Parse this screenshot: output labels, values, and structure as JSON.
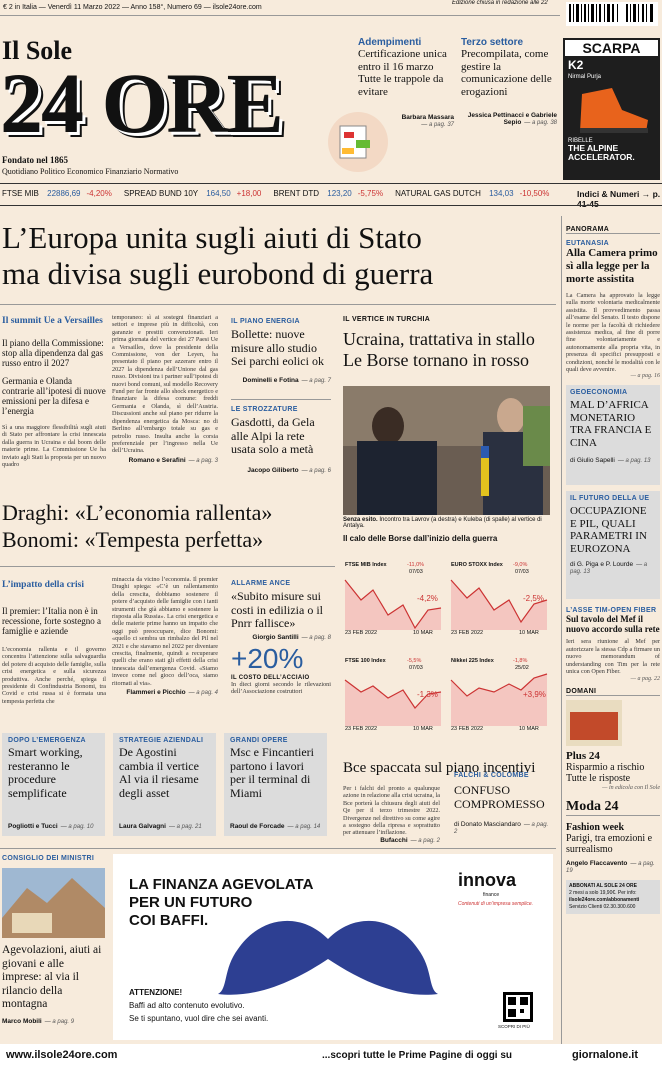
{
  "topbar": {
    "info": "€ 2 in Italia — Venerdì 11 Marzo 2022 — Anno 158°, Numero 69 — ilsole24ore.com",
    "edition": "Edizione chiusa in redazione alle 22"
  },
  "masthead": {
    "name_top": "Il Sole",
    "name_main": "24 ORE",
    "founded": "Fondato nel 1865",
    "tagline": "Quotidiano Politico Economico Finanziario Normativo"
  },
  "teasers": [
    {
      "kicker": "Adempimenti",
      "text": "Certificazione unica entro il 16 marzo Tutte le trappole da evitare",
      "byline": "Barbara Massara",
      "page": "— a pag. 37"
    },
    {
      "kicker": "Terzo settore",
      "text": "Precompilata, come gestire la comunicazione delle erogazioni",
      "byline": "Jessica Pettinacci e Gabriele Sepio",
      "page": "— a pag. 38"
    }
  ],
  "top_ad": {
    "brand": "SCARPA",
    "model": "K2",
    "athlete": "Nirmal Purja",
    "slogan": "RIBELLE",
    "claim": "THE ALPINE ACCELERATOR."
  },
  "markets": {
    "items": [
      {
        "label": "FTSE MIB",
        "value": "22886,69",
        "change": "-4,20%"
      },
      {
        "label": "SPREAD BUND 10Y",
        "value": "164,50",
        "change": "+18,00"
      },
      {
        "label": "BRENT DTD",
        "value": "123,20",
        "change": "-5,75%"
      },
      {
        "label": "NATURAL GAS DUTCH",
        "value": "134,03",
        "change": "-10,50%"
      }
    ],
    "link": "Indici & Numeri → p. 41-45"
  },
  "headline": [
    "L’Europa unita sugli aiuti di Stato",
    "ma divisa sugli eurobond di guerra"
  ],
  "summit": {
    "kicker": "Il summit Ue a Versailles",
    "items": [
      "Il piano della Commissione: stop alla dipendenza dal gas russo entro il 2027",
      "Germania e Olanda contrarie all’ipotesi di nuove emissioni per la difesa e l’energia"
    ],
    "body": "Sì a una maggiore flessibilità sugli aiuti di Stato per affrontare la crisi innescata dalla guerra in Ucraina e dal boom delle materie prime. La Commissione Ue ha inviato agli Stati la proposta per un nuovo quadro"
  },
  "summit_cont": {
    "body": "temporaneo: sì ai sostegni finanziari a settori e imprese più in difficoltà, con garanzie e prestiti convenzionati. Ieri prima giornata del vertice dei 27 Paesi Ue a Versailles, dove la presidente della Commissione, von der Leyen, ha presentato il piano per azzerare entro il 2027 la dipendenza dell’Unione dal gas russo. Divisioni tra i partner sull’ipotesi di nuovi bond comuni, sul modello Recovery Fund per far fronte allo shock energetico e finanziare la difesa comune: freddi Germania e Olanda, sì dell’Austria. Discussioni anche sul piano per ridurre la dipendenza energetica da Mosca: no di Berlino all’embargo totale su gas e petrolio russo. Insulta anche la corsia preferenziale per l’ingresso nella Ue dell’Ucraina.",
    "byline": "Romano e Serafini",
    "page": "— a pag. 3"
  },
  "energy": {
    "kicker": "IL PIANO ENERGIA",
    "title": "Bollette: nuove misure allo studio Sei parchi eolici ok",
    "byline": "Dominelli e Fotina",
    "page": "— a pag. 7"
  },
  "bottlenecks": {
    "kicker": "LE STROZZATURE",
    "title": "Gasdotti, da Gela alle Alpi la rete usata solo a metà",
    "byline": "Jacopo Giliberto",
    "page": "— a pag. 6"
  },
  "lead": {
    "kicker": "IL VERTICE IN TURCHIA",
    "title": "Ucraina, trattativa in stallo Le Borse tornano in rosso",
    "caption_bold": "Senza esito.",
    "caption": "Incontro tra Lavrov (a destra) e Kuleba (di spalle) al vertice di Antalya."
  },
  "draghi": [
    "Draghi: «L’economia rallenta»",
    "Bonomi: «Tempesta perfetta»"
  ],
  "crisis": {
    "kicker": "L’impatto della crisi",
    "item": "Il premier: l’Italia non è in recessione, forte sostegno a famiglie e aziende",
    "body": "L’economia rallenta e il governo concentra l’attenzione sulla salvaguardia del potere di acquisto delle famiglie, sulla crisi energetica e sulla sicurezza produttiva. Anche perché, spiega il presidente di Confindustria Bonomi, tra Covid e crisi russa si è formata una tempesta perfetta che"
  },
  "crisis_cont": {
    "body": "minaccia da vicino l’economia. Il premier Draghi spiega: «C’è un rallentamento della crescita, dobbiamo sostenere il potere d’acquisto delle famiglie con i tanti strumenti che già abbiamo e sostenere la risposta alla Russia». La crisi energetica e delle materie prime hanno un impatto che oggi può preoccupare, dice Bonomi: «quello ci sembra un rimbalzo del Pil nel 2021 e che stavamo nel 2022 per diventare crescita, finalmente, quindi a recuperare quelli che erano stati gli effetti della crisi innescata dall’emergenza Covid. «Siamo invece come nel gioco dell’oca, siamo ritornati al via».",
    "byline": "Flammeri e Picchio",
    "page": "— a pag. 4"
  },
  "ance": {
    "kicker": "ALLARME ANCE",
    "title": "«Subito misure sui costi in edilizia o il Pnrr fallisce»",
    "byline": "Giorgio Santilli",
    "page": "— a pag. 8",
    "stat": "+20%",
    "stat_kicker": "IL COSTO DELL’ACCIAIO",
    "stat_text": "In dieci giorni secondo le rilevazioni dell’Associazione costruttori"
  },
  "stock_charts": {
    "title": "Il calo delle Borse dall’inizio della guerra",
    "panels": [
      {
        "name": "FTSE MIB Index",
        "low": "-11,0%",
        "low_date": "07/03",
        "last": "-4,2%",
        "start": "23 FEB 2022",
        "end": "10 MAR"
      },
      {
        "name": "EURO STOXX Index",
        "low": "-9,0%",
        "low_date": "07/03",
        "last": "-2,5%",
        "start": "23 FEB 2022",
        "end": "10 MAR"
      },
      {
        "name": "FTSE 100 Index",
        "low": "-5,5%",
        "low_date": "07/03",
        "last": "-1,3%",
        "start": "23 FEB 2022",
        "end": "10 MAR"
      },
      {
        "name": "Nikkei 225 Index",
        "low": "-1,8%",
        "low_date": "25/02",
        "last": "+3,9%",
        "start": "23 FEB 2022",
        "end": "10 MAR"
      }
    ]
  },
  "bce": {
    "title": "Bce spaccata sul piano incentivi",
    "body": "Per i falchi del pronto a qualunque azione in relazione alla crisi ucraina, la Bce porterà la chiusura degli aiuti del Qe per il terzo trimestre 2022. Divergenze nel direttivo su come agire a sostegno della ripresa e soprattutto per attenuare l’inflazione.",
    "byline": "Bufacchi",
    "page": "— a pag. 2"
  },
  "hawks": {
    "kicker": "FALCHI & COLOMBE",
    "title": "CONFUSO COMPROMESSO",
    "byline": "di Donato Masciandaro",
    "page": "— a pag. 2"
  },
  "grey_boxes": [
    {
      "kicker": "DOPO L’EMERGENZA",
      "title": "Smart working, resteranno le procedure semplificate",
      "byline": "Pogliotti e Tucci",
      "page": "— a pag. 10"
    },
    {
      "kicker": "STRATEGIE AZIENDALI",
      "title": "De Agostini cambia il vertice Al via il riesame degli asset",
      "byline": "Laura Galvagni",
      "page": "— a pag. 21"
    },
    {
      "kicker": "GRANDI OPERE",
      "title": "Msc e Fincantieri partono i lavori per il terminal di Miami",
      "byline": "Raoul de Forcade",
      "page": "— a pag. 14"
    }
  ],
  "cdm": {
    "kicker": "CONSIGLIO DEI MINISTRI",
    "title": "Agevolazioni, aiuti ai giovani e alle imprese: al via il rilancio della montagna",
    "byline": "Marco Mobili",
    "page": "— a pag. 9"
  },
  "bottom_ad": {
    "line1": "LA FINANZA AGEVOLATA",
    "line2": "PER UN FUTURO",
    "line3": "COI BAFFI.",
    "brand": "innova",
    "brand_sub": "finance",
    "brand_tag": "Contenuti di un’impresa semplice.",
    "attention": "ATTENZIONE!",
    "text1": "Baffi ad alto contenuto evolutivo.",
    "text2": "Se ti spuntano, vuol dire che sei avanti.",
    "qr": "SCOPRI DI PIÙ"
  },
  "sidebar": {
    "section": "PANORAMA",
    "euthanasia": {
      "kicker": "EUTANASIA",
      "title": "Alla Camera primo sì alla legge per la morte assistita",
      "body": "La Camera ha approvato la legge sulla morte volontaria medicalmente assistita. Il provvedimento passa all’esame del Senato. Il testo dispone le norme per la facoltà di richiedere assistenza medica, al fine di porre fine volontariamente e autonomamente alla propria vita, in presenza di specifici presupposti e condizioni, nonché le modalità con le quali deve avvenire.",
      "page": "— a pag. 16"
    },
    "geo": {
      "kicker": "GEOECONOMIA",
      "title": "MAL D’AFRICA MONETARIO TRA FRANCIA E CINA",
      "byline": "di Giulio Sapelli",
      "page": "— a pag. 13"
    },
    "eu": {
      "kicker": "IL FUTURO DELLA UE",
      "title": "OCCUPAZIONE E PIL, QUALI PARAMETRI IN EUROZONA",
      "byline": "di G. Piga e P. Lourde",
      "page": "— a pag. 13"
    },
    "tim": {
      "kicker": "L’ASSE TIM-OPEN FIBER",
      "title": "Sul tavolo del Mef il nuovo accordo sulla rete",
      "body": "Ieri sera riunione al Mef per autorizzare la stessa Cdp a firmare un nuovo memorandum of understanding con Tim per la rete unica con Open Fiber.",
      "page": "— a pag. 22"
    },
    "tomorrow": {
      "kicker": "DOMANI",
      "name": "Plus 24",
      "title": "Risparmio a rischio Tutte le risposte",
      "page": "— in edicola con Il Sole"
    },
    "moda": {
      "name": "Moda 24",
      "kicker": "Fashion week",
      "title": "Parigi, tra emozioni e surrealismo",
      "byline": "Angelo Flaccavento",
      "page": "— a pag. 19"
    },
    "subscribe": {
      "title": "ABBONATI AL SOLE 24 ORE",
      "line1": "2 mesi a solo 19,90€. Per info:",
      "line2": "ilsole24ore.com/abbonamenti",
      "line3": "Servizio Clienti 02.30.300.600"
    }
  },
  "footer": {
    "left": "www.ilsole24ore.com",
    "right": "...scopri tutte le Prime Pagine di oggi su",
    "brand": "giornalone.it"
  }
}
